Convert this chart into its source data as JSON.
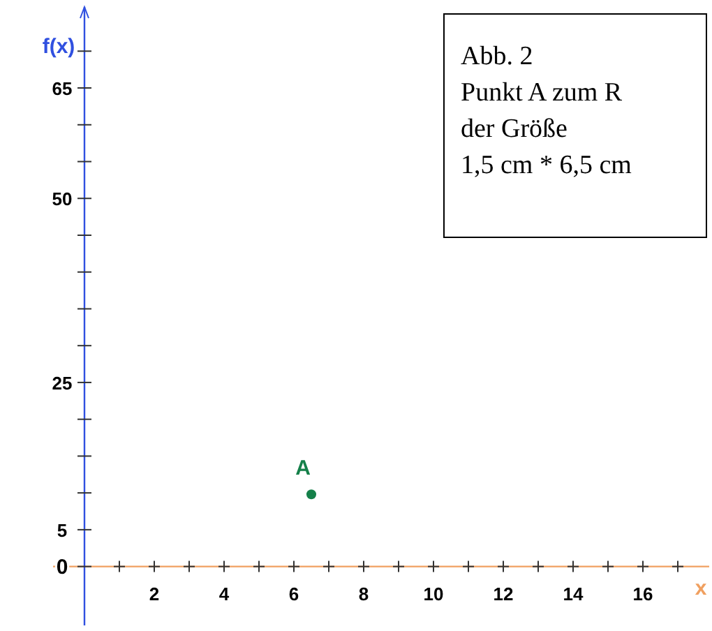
{
  "chart_data": {
    "type": "scatter",
    "xlabel": "x",
    "ylabel": "f(x)",
    "x": [
      6.5
    ],
    "values": [
      9.8
    ],
    "color": "#15804a",
    "marker": "circle",
    "grid": false,
    "xlim": [
      -0.9,
      17.9
    ],
    "ylim": [
      -8,
      76
    ],
    "xticks": [
      {
        "value": 1,
        "label": null
      },
      2,
      {
        "value": 3,
        "label": null
      },
      4,
      {
        "value": 5,
        "label": null
      },
      6,
      {
        "value": 7,
        "label": null
      },
      8,
      {
        "value": 9,
        "label": null
      },
      10,
      {
        "value": 11,
        "label": null
      },
      12,
      {
        "value": 13,
        "label": null
      },
      14,
      {
        "value": 15,
        "label": null
      },
      16,
      {
        "value": 17,
        "label": null
      }
    ],
    "yticks": [
      0,
      5,
      {
        "value": 10,
        "label": null
      },
      {
        "value": 15,
        "label": null
      },
      {
        "value": 20,
        "label": null
      },
      25,
      {
        "value": 30,
        "label": null
      },
      {
        "value": 35,
        "label": null
      },
      {
        "value": 40,
        "label": null
      },
      {
        "value": 45,
        "label": null
      },
      50,
      {
        "value": 55,
        "label": null
      },
      {
        "value": 60,
        "label": null
      },
      65,
      {
        "value": 70,
        "label": null
      }
    ],
    "annotations": [
      "Abb. 2",
      "Punkt A zum R",
      "der Größe",
      "1,5 cm * 6,5 cm",
      {
        "text": "A",
        "x": 6.5,
        "y": 9.8
      }
    ]
  }
}
